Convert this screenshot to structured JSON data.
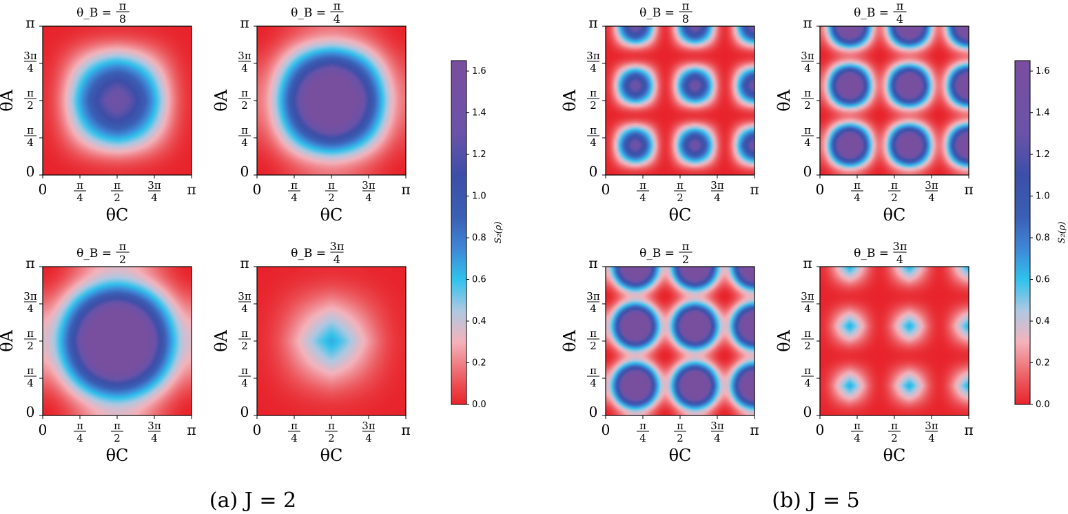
{
  "figure": {
    "caption_a": "(a) J = 2",
    "caption_b": "(b) J = 5"
  },
  "chart_data": {
    "type": "heatmap",
    "colorbar": {
      "label": "S₂(ρ)",
      "range": [
        0.0,
        1.65
      ],
      "ticks": [
        "0.0",
        "0.2",
        "0.4",
        "0.6",
        "0.8",
        "1.0",
        "1.2",
        "1.4",
        "1.6"
      ],
      "tick_values": [
        0.0,
        0.2,
        0.4,
        0.6,
        0.8,
        1.0,
        1.2,
        1.4,
        1.6
      ],
      "colormap": [
        {
          "v": 0.0,
          "c": "#e8232b"
        },
        {
          "v": 0.12,
          "c": "#ec5a5f"
        },
        {
          "v": 0.3,
          "c": "#f4b3bb"
        },
        {
          "v": 0.45,
          "c": "#aec8e2"
        },
        {
          "v": 0.6,
          "c": "#2fc2ec"
        },
        {
          "v": 0.75,
          "c": "#3f86d6"
        },
        {
          "v": 0.9,
          "c": "#3a5fb4"
        },
        {
          "v": 1.1,
          "c": "#3c4ea8"
        },
        {
          "v": 1.3,
          "c": "#6a53a8"
        },
        {
          "v": 1.65,
          "c": "#7a4e9e"
        }
      ]
    },
    "axes": {
      "xlabel": "θ_C",
      "ylabel": "θ_A",
      "xlim": [
        0,
        3.14159
      ],
      "ylim": [
        0,
        3.14159
      ],
      "ticks": [
        "0",
        "π/4",
        "π/2",
        "3π/4",
        "π"
      ]
    },
    "groups": [
      {
        "J": 2,
        "panels": [
          {
            "title_lhs": "θ_B =",
            "title_frac": "π/8",
            "J": 2,
            "thetaB": 0.3927
          },
          {
            "title_lhs": "θ_B =",
            "title_frac": "π/4",
            "J": 2,
            "thetaB": 0.7854
          },
          {
            "title_lhs": "θ_B =",
            "title_frac": "π/2",
            "J": 2,
            "thetaB": 1.5708
          },
          {
            "title_lhs": "θ_B =",
            "title_frac": "3π/4",
            "J": 2,
            "thetaB": 2.3562
          }
        ]
      },
      {
        "J": 5,
        "panels": [
          {
            "title_lhs": "θ_B =",
            "title_frac": "π/8",
            "J": 5,
            "thetaB": 0.3927
          },
          {
            "title_lhs": "θ_B =",
            "title_frac": "π/4",
            "J": 5,
            "thetaB": 0.7854
          },
          {
            "title_lhs": "θ_B =",
            "title_frac": "π/2",
            "J": 5,
            "thetaB": 1.5708
          },
          {
            "title_lhs": "θ_B =",
            "title_frac": "3π/4",
            "J": 5,
            "thetaB": 2.3562
          }
        ]
      }
    ]
  }
}
